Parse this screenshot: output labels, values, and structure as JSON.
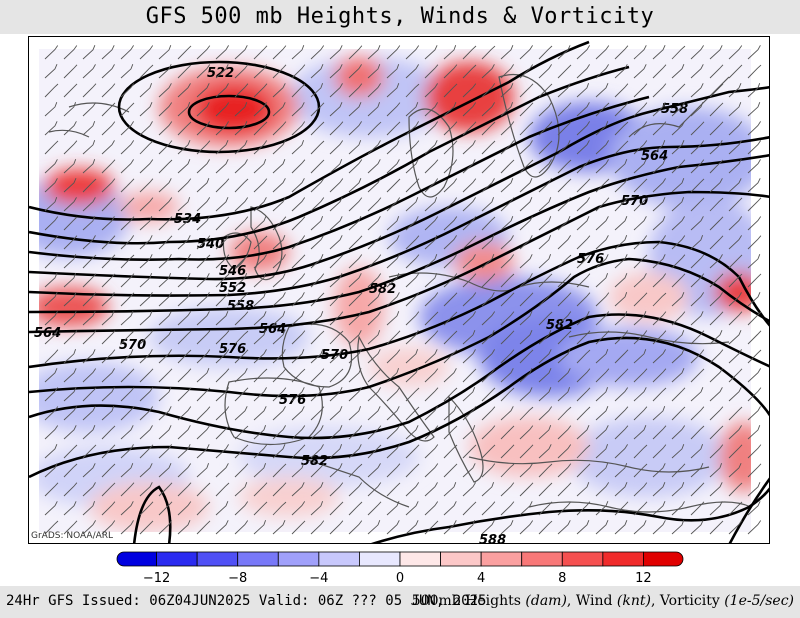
{
  "title": "GFS 500 mb Heights, Winds & Vorticity",
  "credit": "GrADS: NOAA/ARL",
  "footer": {
    "issued": "24Hr GFS Issued: 06Z04JUN2025 Valid: 06Z ??? 05 JUN, 2025",
    "fields_prefix": "500mb Heights",
    "heights_unit": "(dam)",
    "wind_label": "Wind",
    "wind_unit": "(knt)",
    "vort_label": "Vorticity",
    "vort_unit": "(1e-5/sec)"
  },
  "colorbar": {
    "ticks": [
      "−12",
      "−8",
      "−4",
      "0",
      "4",
      "8",
      "12"
    ],
    "colors": [
      "#0000e0",
      "#2b2bf0",
      "#5050f5",
      "#7878f8",
      "#a0a0fa",
      "#c8c8fc",
      "#e8e8fe",
      "#fee8e8",
      "#fcc8c8",
      "#faa0a0",
      "#f87878",
      "#f55050",
      "#f02b2b",
      "#e00000"
    ]
  },
  "contours": {
    "labels": [
      "522",
      "534",
      "540",
      "546",
      "552",
      "558",
      "564",
      "570",
      "576",
      "582",
      "588",
      "558",
      "564",
      "570",
      "576",
      "582",
      "564",
      "570",
      "576",
      "582"
    ]
  }
}
